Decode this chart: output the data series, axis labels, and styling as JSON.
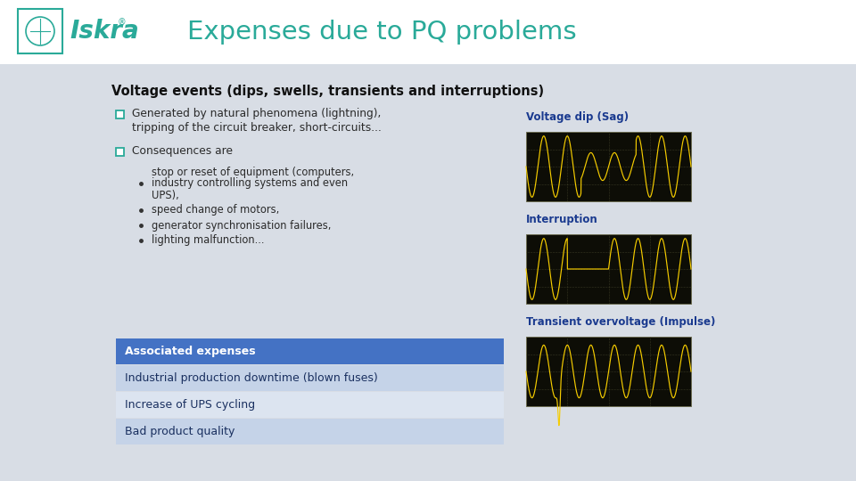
{
  "title": "Expenses due to PQ problems",
  "title_color": "#2aaa99",
  "bg_color": "#d8dde5",
  "header_bg": "#ffffff",
  "section_title": "Voltage events (dips, swells, transients and interruptions)",
  "bullet1_main": "Generated by natural phenomena (lightning),",
  "bullet1_sub": "tripping of the circuit breaker, short-circuits...",
  "bullet2_main": "Consequences are",
  "sub_bullets": [
    "stop or reset of equipment (computers,\nindustry controlling systems and even\nUPS),",
    "speed change of motors,",
    "generator synchronisation failures,",
    "lighting malfunction..."
  ],
  "table_rows": [
    {
      "text": "Associated expenses",
      "bg": "#4472c4",
      "text_color": "#ffffff",
      "bold": true
    },
    {
      "text": "Industrial production downtime (blown fuses)",
      "bg": "#c5d3e8",
      "text_color": "#1a3060",
      "bold": false
    },
    {
      "text": "Increase of UPS cycling",
      "bg": "#dce4f0",
      "text_color": "#1a3060",
      "bold": false
    },
    {
      "text": "Bad product quality",
      "bg": "#c5d3e8",
      "text_color": "#1a3060",
      "bold": false
    }
  ],
  "osc_labels": [
    "Voltage dip (Sag)",
    "Interruption",
    "Transient overvoltage (Impulse)"
  ],
  "osc_label_color": "#1a3a8f",
  "iskra_color": "#2aaa99",
  "checkbox_color": "#2aaa99"
}
